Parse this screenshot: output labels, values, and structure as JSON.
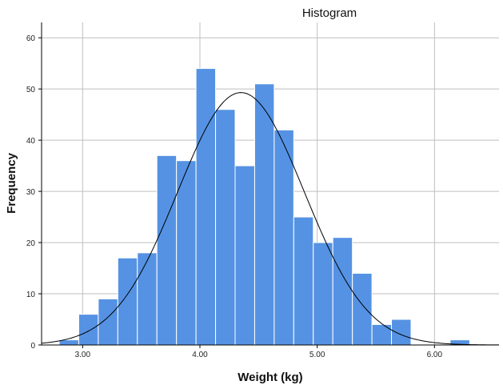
{
  "chart_data": {
    "type": "bar",
    "title": "Histogram",
    "xlabel": "Weight (kg)",
    "ylabel": "Frequency",
    "xlim": [
      2.65,
      6.55
    ],
    "ylim": [
      0,
      63
    ],
    "bin_width": 0.1667,
    "bins": [
      {
        "x0": 2.8,
        "x1": 2.9667,
        "count": 1
      },
      {
        "x0": 2.9667,
        "x1": 3.1333,
        "count": 6
      },
      {
        "x0": 3.1333,
        "x1": 3.3,
        "count": 9
      },
      {
        "x0": 3.3,
        "x1": 3.4667,
        "count": 17
      },
      {
        "x0": 3.4667,
        "x1": 3.6333,
        "count": 18
      },
      {
        "x0": 3.6333,
        "x1": 3.8,
        "count": 37
      },
      {
        "x0": 3.8,
        "x1": 3.9667,
        "count": 36
      },
      {
        "x0": 3.9667,
        "x1": 4.1333,
        "count": 54
      },
      {
        "x0": 4.1333,
        "x1": 4.3,
        "count": 46
      },
      {
        "x0": 4.3,
        "x1": 4.4667,
        "count": 35
      },
      {
        "x0": 4.4667,
        "x1": 4.6333,
        "count": 51
      },
      {
        "x0": 4.6333,
        "x1": 4.8,
        "count": 42
      },
      {
        "x0": 4.8,
        "x1": 4.9667,
        "count": 25
      },
      {
        "x0": 4.9667,
        "x1": 5.1333,
        "count": 20
      },
      {
        "x0": 5.1333,
        "x1": 5.3,
        "count": 21
      },
      {
        "x0": 5.3,
        "x1": 5.4667,
        "count": 14
      },
      {
        "x0": 5.4667,
        "x1": 5.6333,
        "count": 4
      },
      {
        "x0": 5.6333,
        "x1": 5.8,
        "count": 5
      },
      {
        "x0": 6.1333,
        "x1": 6.3,
        "count": 1
      }
    ],
    "normal_curve": {
      "mean": 4.35,
      "sd": 0.54,
      "peak": 49.3
    },
    "x_ticks": [
      3.0,
      4.0,
      5.0,
      6.0
    ],
    "x_tick_labels": [
      "3.00",
      "4.00",
      "5.00",
      "6.00"
    ],
    "y_ticks": [
      0,
      10,
      20,
      30,
      40,
      50,
      60
    ],
    "y_tick_labels": [
      "0",
      "10",
      "20",
      "30",
      "40",
      "50",
      "60"
    ],
    "grid": true,
    "legend": "none",
    "colors": {
      "bar_fill": "#5592e3",
      "bar_stroke": "#ffffff",
      "curve": "#000000",
      "grid": "#bfbfbf",
      "axis": "#000000"
    }
  }
}
